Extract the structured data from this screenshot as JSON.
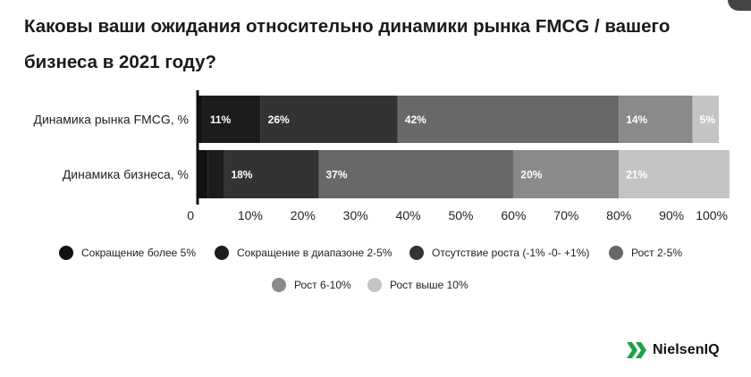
{
  "title": "Каковы ваши ожидания относительно динамики рынка FMCG / вашего бизнеса в 2021 году?",
  "logo_text": "NielsenIQ",
  "chart_data": {
    "type": "bar",
    "orientation": "horizontal",
    "stacked": true,
    "categories": [
      "Динамика рынка FMCG, %",
      "Динамика бизнеса, %"
    ],
    "series": [
      {
        "name": "Сокращение более 5%",
        "values": [
          1,
          2
        ],
        "color": "#111111",
        "labels": [
          "",
          ""
        ]
      },
      {
        "name": "Сокращение в диапазоне 2-5%",
        "values": [
          11,
          3
        ],
        "color": "#1c1c1c",
        "labels": [
          "11%",
          ""
        ]
      },
      {
        "name": "Отсутствие роста (-1% -0- +1%)",
        "values": [
          26,
          18
        ],
        "color": "#333333",
        "labels": [
          "26%",
          "18%"
        ]
      },
      {
        "name": "Рост 2-5%",
        "values": [
          42,
          37
        ],
        "color": "#686868",
        "labels": [
          "42%",
          "37%"
        ]
      },
      {
        "name": "Рост 6-10%",
        "values": [
          14,
          20
        ],
        "color": "#8a8a8a",
        "labels": [
          "14%",
          "20%"
        ]
      },
      {
        "name": "Рост выше 10%",
        "values": [
          5,
          21
        ],
        "color": "#c4c4c4",
        "labels": [
          "5%",
          "21%"
        ]
      }
    ],
    "x_ticks": [
      "0",
      "10%",
      "20%",
      "30%",
      "40%",
      "50%",
      "60%",
      "70%",
      "80%",
      "90%",
      "100%"
    ],
    "xlim": [
      0,
      100
    ],
    "grid": false,
    "legend_position": "bottom"
  }
}
